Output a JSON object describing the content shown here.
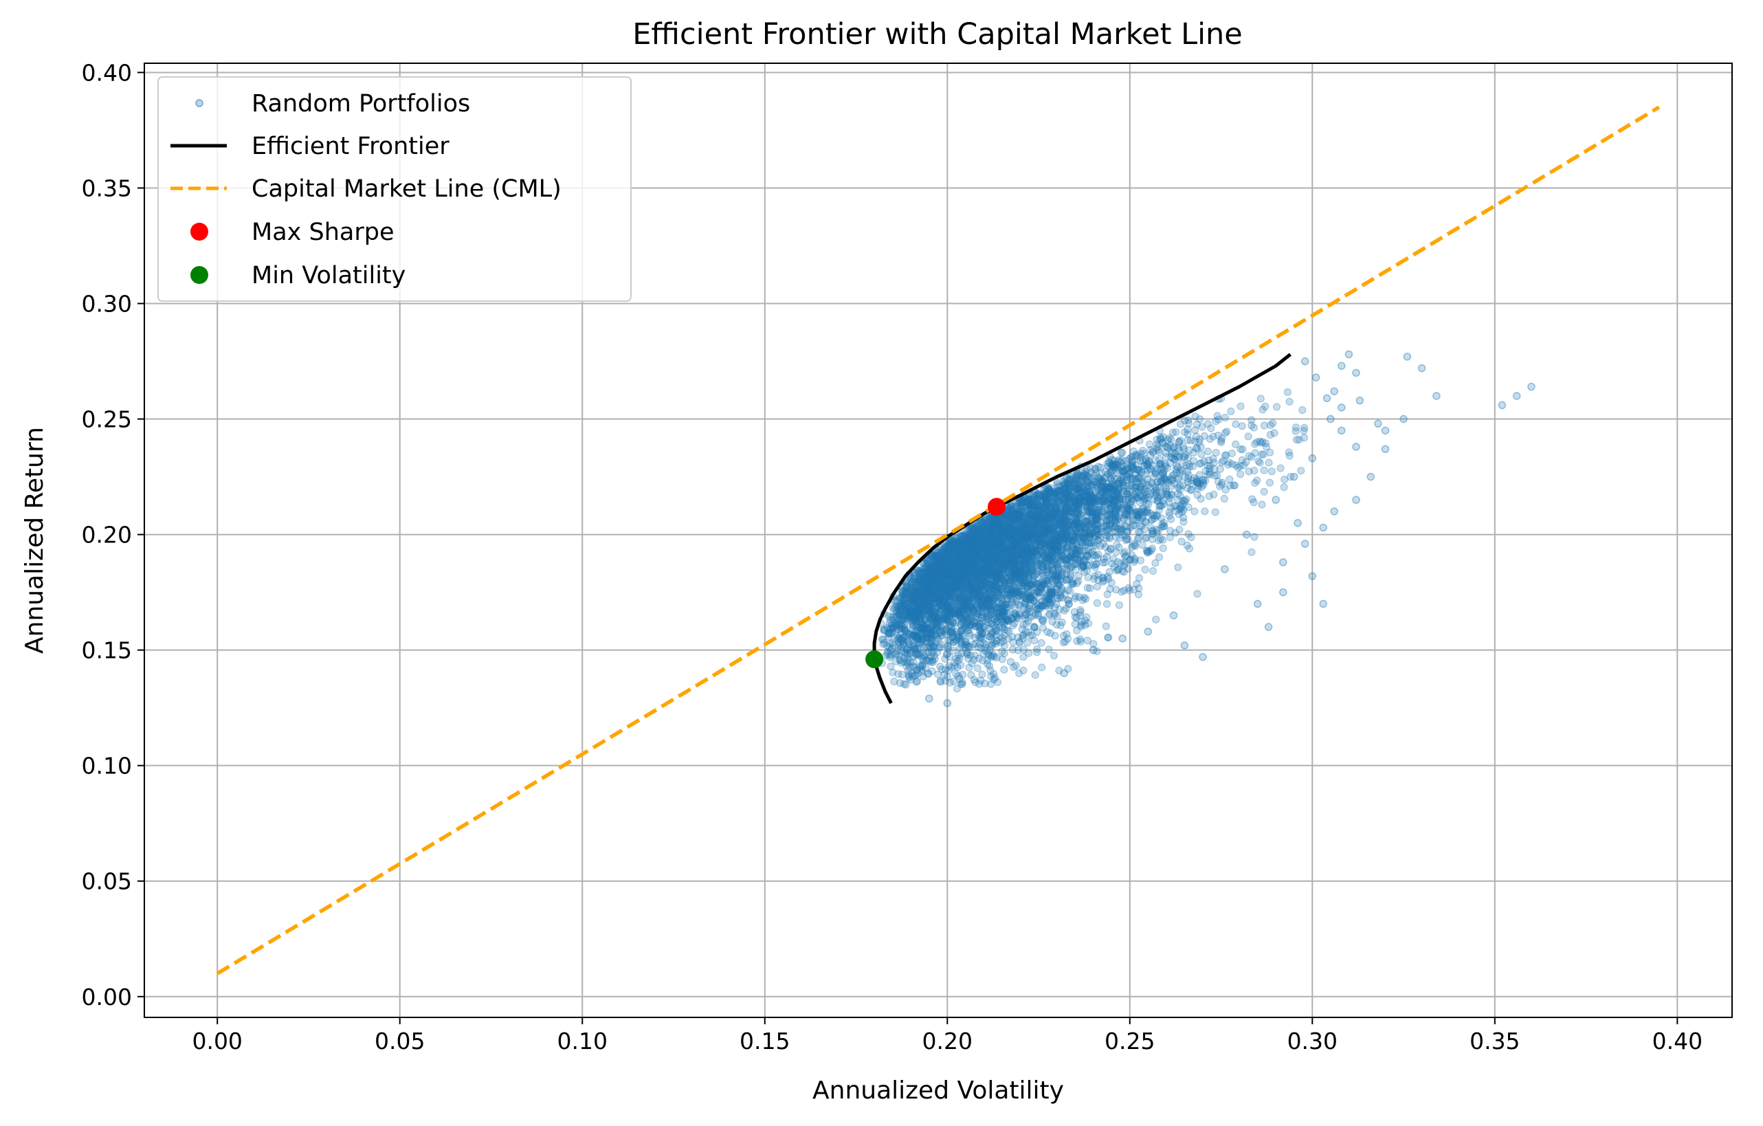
{
  "chart_data": {
    "type": "scatter",
    "title": "Efficient Frontier with Capital Market Line",
    "xlabel": "Annualized Volatility",
    "ylabel": "Annualized Return",
    "xlim": [
      -0.02,
      0.415
    ],
    "ylim": [
      -0.009,
      0.404
    ],
    "xticks": [
      "0.00",
      "0.05",
      "0.10",
      "0.15",
      "0.20",
      "0.25",
      "0.30",
      "0.35",
      "0.40"
    ],
    "xtick_values": [
      0,
      0.05,
      0.1,
      0.15,
      0.2,
      0.25,
      0.3,
      0.35,
      0.4
    ],
    "yticks": [
      "0.00",
      "0.05",
      "0.10",
      "0.15",
      "0.20",
      "0.25",
      "0.30",
      "0.35",
      "0.40"
    ],
    "ytick_values": [
      0,
      0.05,
      0.1,
      0.15,
      0.2,
      0.25,
      0.3,
      0.35,
      0.4
    ],
    "grid": true,
    "legend_position": "top-left",
    "colors": {
      "random": "#1f77b4",
      "frontier": "#000000",
      "cml": "#ffa500",
      "max_sharpe": "#ff0000",
      "min_vol": "#008000",
      "grid": "#b0b0b0"
    },
    "series": [
      {
        "name": "Random Portfolios",
        "kind": "scatter",
        "n_points": 6000,
        "lower_boundary": [
          [
            0.18,
            0.146
          ],
          [
            0.185,
            0.14
          ],
          [
            0.195,
            0.137
          ],
          [
            0.205,
            0.137
          ],
          [
            0.215,
            0.139
          ],
          [
            0.225,
            0.142
          ],
          [
            0.235,
            0.146
          ],
          [
            0.245,
            0.152
          ],
          [
            0.255,
            0.16
          ],
          [
            0.265,
            0.17
          ],
          [
            0.275,
            0.182
          ],
          [
            0.285,
            0.196
          ]
        ],
        "outliers": [
          [
            0.2,
            0.127
          ],
          [
            0.195,
            0.129
          ],
          [
            0.232,
            0.14
          ],
          [
            0.265,
            0.152
          ],
          [
            0.27,
            0.147
          ],
          [
            0.288,
            0.16
          ],
          [
            0.303,
            0.17
          ],
          [
            0.3,
            0.182
          ],
          [
            0.285,
            0.17
          ],
          [
            0.292,
            0.175
          ],
          [
            0.298,
            0.196
          ],
          [
            0.303,
            0.203
          ],
          [
            0.306,
            0.21
          ],
          [
            0.312,
            0.215
          ],
          [
            0.316,
            0.225
          ],
          [
            0.32,
            0.237
          ],
          [
            0.32,
            0.245
          ],
          [
            0.318,
            0.248
          ],
          [
            0.325,
            0.25
          ],
          [
            0.312,
            0.238
          ],
          [
            0.308,
            0.245
          ],
          [
            0.305,
            0.25
          ],
          [
            0.308,
            0.255
          ],
          [
            0.313,
            0.258
          ],
          [
            0.306,
            0.262
          ],
          [
            0.312,
            0.27
          ],
          [
            0.308,
            0.273
          ],
          [
            0.31,
            0.278
          ],
          [
            0.298,
            0.275
          ],
          [
            0.301,
            0.268
          ],
          [
            0.304,
            0.259
          ],
          [
            0.326,
            0.277
          ],
          [
            0.33,
            0.272
          ],
          [
            0.334,
            0.26
          ],
          [
            0.352,
            0.256
          ],
          [
            0.356,
            0.26
          ],
          [
            0.36,
            0.264
          ],
          [
            0.282,
            0.2
          ],
          [
            0.29,
            0.215
          ],
          [
            0.295,
            0.225
          ],
          [
            0.3,
            0.233
          ],
          [
            0.296,
            0.205
          ],
          [
            0.292,
            0.188
          ],
          [
            0.276,
            0.185
          ],
          [
            0.262,
            0.165
          ],
          [
            0.255,
            0.158
          ],
          [
            0.248,
            0.155
          ],
          [
            0.24,
            0.15
          ]
        ]
      },
      {
        "name": "Efficient Frontier",
        "kind": "line",
        "points": [
          [
            0.1846,
            0.127
          ],
          [
            0.183,
            0.132
          ],
          [
            0.1815,
            0.138
          ],
          [
            0.1805,
            0.143
          ],
          [
            0.18,
            0.148
          ],
          [
            0.18,
            0.153
          ],
          [
            0.1805,
            0.158
          ],
          [
            0.1815,
            0.163
          ],
          [
            0.183,
            0.168
          ],
          [
            0.1855,
            0.175
          ],
          [
            0.1885,
            0.182
          ],
          [
            0.192,
            0.188
          ],
          [
            0.196,
            0.194
          ],
          [
            0.2,
            0.199
          ],
          [
            0.205,
            0.204
          ],
          [
            0.21,
            0.209
          ],
          [
            0.2135,
            0.212
          ],
          [
            0.22,
            0.217
          ],
          [
            0.23,
            0.225
          ],
          [
            0.24,
            0.232
          ],
          [
            0.25,
            0.24
          ],
          [
            0.26,
            0.248
          ],
          [
            0.27,
            0.256
          ],
          [
            0.28,
            0.264
          ],
          [
            0.29,
            0.273
          ],
          [
            0.294,
            0.278
          ]
        ]
      },
      {
        "name": "Capital Market Line (CML)",
        "kind": "line",
        "dashed": true,
        "points": [
          [
            0.0,
            0.01
          ],
          [
            0.395,
            0.385
          ]
        ]
      },
      {
        "name": "Max Sharpe",
        "kind": "marker",
        "x": 0.2135,
        "y": 0.212
      },
      {
        "name": "Min Volatility",
        "kind": "marker",
        "x": 0.18,
        "y": 0.146
      }
    ],
    "legend": [
      "Random Portfolios",
      "Efficient Frontier",
      "Capital Market Line (CML)",
      "Max Sharpe",
      "Min Volatility"
    ]
  }
}
